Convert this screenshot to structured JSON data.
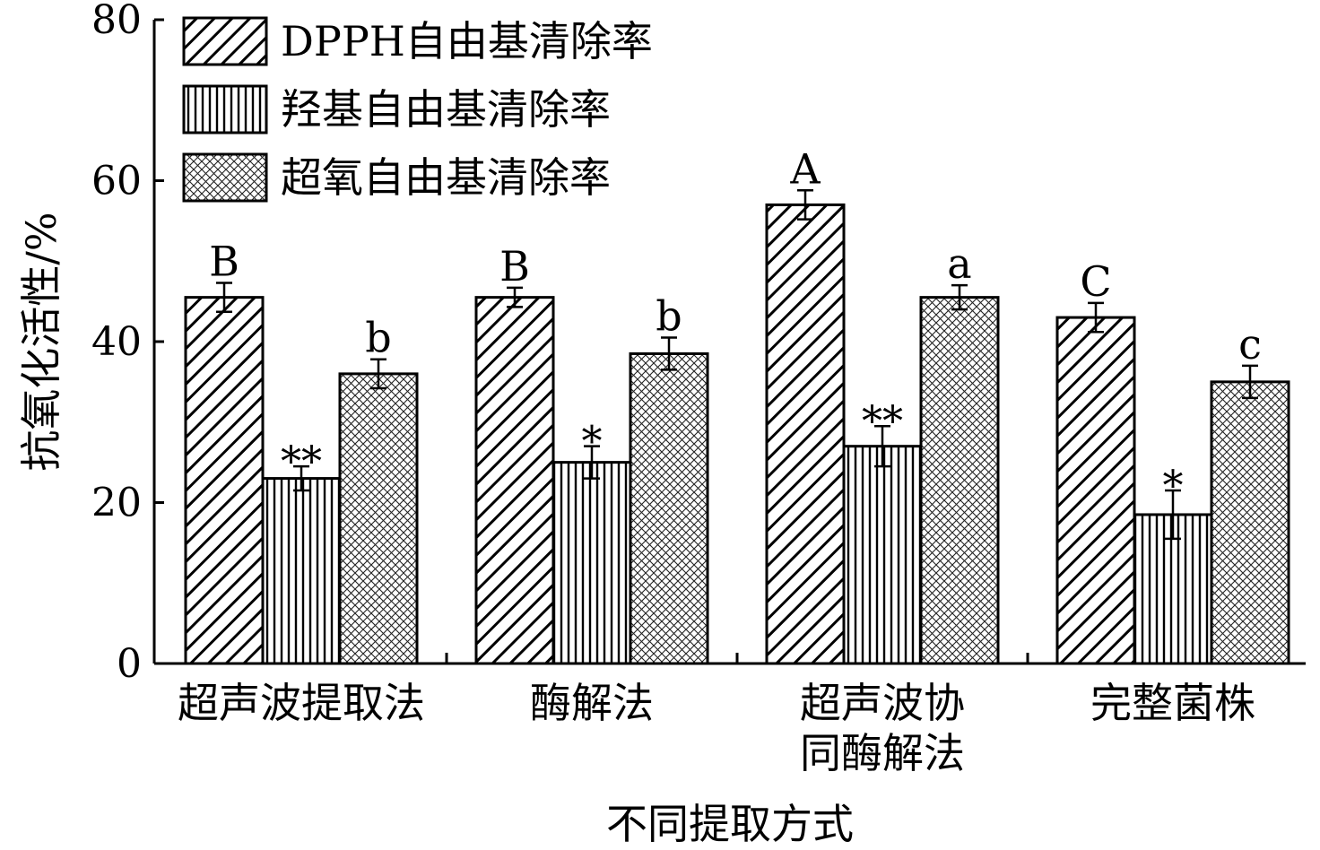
{
  "chart_data": {
    "type": "bar",
    "xlabel": "不同提取方式",
    "ylabel": "抗氧化活性/%",
    "ylim": [
      0,
      80
    ],
    "yticks": [
      0,
      20,
      40,
      60,
      80
    ],
    "grid": false,
    "legend_position": "top-left",
    "categories": [
      [
        "超声波提取法"
      ],
      [
        "酶解法"
      ],
      [
        "超声波协",
        "同酶解法"
      ],
      [
        "完整菌株"
      ]
    ],
    "series": [
      {
        "name": "DPPH自由基清除率",
        "pattern": "diagonal-hatch",
        "values": [
          45.5,
          45.5,
          57.0,
          43.0
        ],
        "errors": [
          1.8,
          1.2,
          1.8,
          1.8
        ],
        "labels": [
          "B",
          "B",
          "A",
          "C"
        ]
      },
      {
        "name": "羟基自由基清除率",
        "pattern": "vertical-lines",
        "values": [
          23.0,
          25.0,
          27.0,
          18.5
        ],
        "errors": [
          1.5,
          2.0,
          2.5,
          3.0
        ],
        "labels": [
          "**",
          "*",
          "**",
          "*"
        ]
      },
      {
        "name": "超氧自由基清除率",
        "pattern": "crosshatch",
        "values": [
          36.0,
          38.5,
          45.5,
          35.0
        ],
        "errors": [
          1.8,
          2.0,
          1.5,
          2.0
        ],
        "labels": [
          "b",
          "b",
          "a",
          "c"
        ]
      }
    ]
  }
}
